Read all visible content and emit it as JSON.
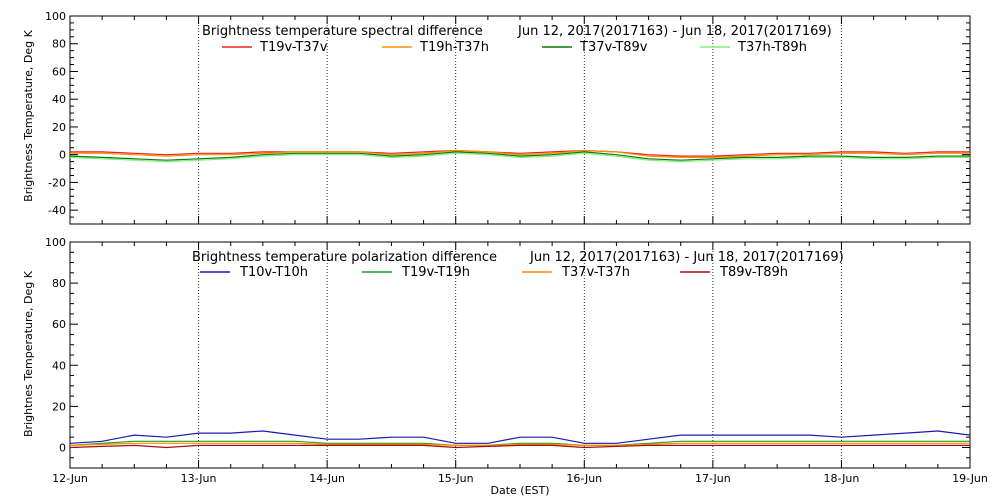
{
  "chart_data": [
    {
      "type": "line",
      "title": "Brightness temperature spectral difference",
      "date_range": "Jun 12, 2017(2017163) - Jun 18, 2017(2017169)",
      "xlabel": "",
      "ylabel": "Brightness Temperature, Deg K",
      "xlim": [
        0,
        7
      ],
      "ylim": [
        -50,
        100
      ],
      "yticks": [
        -40,
        -20,
        0,
        20,
        40,
        60,
        80,
        100
      ],
      "grid": "dotted vertical at each day",
      "legend_position": "top",
      "series": [
        {
          "name": "T19v-T37v",
          "color": "#e8231b",
          "x": [
            0,
            0.25,
            0.5,
            0.75,
            1,
            1.25,
            1.5,
            1.75,
            2,
            2.25,
            2.5,
            2.75,
            3,
            3.25,
            3.5,
            3.75,
            4,
            4.25,
            4.5,
            4.75,
            5,
            5.25,
            5.5,
            5.75,
            6,
            6.25,
            6.5,
            6.75,
            7
          ],
          "y": [
            2,
            2,
            1,
            0,
            1,
            1,
            2,
            2,
            2,
            2,
            1,
            2,
            3,
            2,
            1,
            2,
            3,
            2,
            0,
            -1,
            -1,
            0,
            1,
            1,
            2,
            2,
            1,
            2,
            2
          ]
        },
        {
          "name": "T19h-T37h",
          "color": "#ff8c00",
          "x": [
            0,
            0.25,
            0.5,
            0.75,
            1,
            1.25,
            1.5,
            1.75,
            2,
            2.25,
            2.5,
            2.75,
            3,
            3.25,
            3.5,
            3.75,
            4,
            4.25,
            4.5,
            4.75,
            5,
            5.25,
            5.5,
            5.75,
            6,
            6.25,
            6.5,
            6.75,
            7
          ],
          "y": [
            1,
            1,
            0,
            -1,
            0,
            0,
            1,
            2,
            2,
            2,
            0,
            1,
            3,
            2,
            0,
            1,
            3,
            2,
            -1,
            -2,
            -2,
            -1,
            0,
            0,
            1,
            1,
            0,
            1,
            1
          ]
        },
        {
          "name": "T37v-T89v",
          "color": "#0a7a0a",
          "x": [
            0,
            0.25,
            0.5,
            0.75,
            1,
            1.25,
            1.5,
            1.75,
            2,
            2.25,
            2.5,
            2.75,
            3,
            3.25,
            3.5,
            3.75,
            4,
            4.25,
            4.5,
            4.75,
            5,
            5.25,
            5.5,
            5.75,
            6,
            6.25,
            6.5,
            6.75,
            7
          ],
          "y": [
            -1,
            -2,
            -3,
            -4,
            -3,
            -2,
            0,
            1,
            1,
            1,
            -1,
            0,
            2,
            1,
            -1,
            0,
            2,
            0,
            -3,
            -4,
            -3,
            -2,
            -2,
            -1,
            -1,
            -2,
            -2,
            -1,
            -1
          ]
        },
        {
          "name": "T37h-T89h",
          "color": "#7cf07c",
          "x": [
            0,
            0.25,
            0.5,
            0.75,
            1,
            1.25,
            1.5,
            1.75,
            2,
            2.25,
            2.5,
            2.75,
            3,
            3.25,
            3.5,
            3.75,
            4,
            4.25,
            4.5,
            4.75,
            5,
            5.25,
            5.5,
            5.75,
            6,
            6.25,
            6.5,
            6.75,
            7
          ],
          "y": [
            -2,
            -3,
            -4,
            -5,
            -4,
            -3,
            -1,
            0,
            0,
            0,
            -2,
            -1,
            1,
            0,
            -2,
            -1,
            1,
            -1,
            -4,
            -5,
            -4,
            -3,
            -3,
            -2,
            -2,
            -3,
            -3,
            -2,
            -2
          ]
        }
      ]
    },
    {
      "type": "line",
      "title": "Brightness temperature polarization difference",
      "date_range": "Jun 12, 2017(2017163) - Jun 18, 2017(2017169)",
      "xlabel": "Date (EST)",
      "ylabel": "Brightnes Temperature, Deg K",
      "xlim": [
        0,
        7
      ],
      "ylim": [
        -10,
        100
      ],
      "yticks": [
        0,
        20,
        40,
        60,
        80,
        100
      ],
      "grid": "dotted vertical at each day",
      "legend_position": "top",
      "xtick_labels": [
        "12-Jun",
        "13-Jun",
        "14-Jun",
        "15-Jun",
        "16-Jun",
        "17-Jun",
        "18-Jun",
        "19-Jun"
      ],
      "series": [
        {
          "name": "T10v-T10h",
          "color": "#1a1ab0",
          "x": [
            0,
            0.25,
            0.5,
            0.75,
            1,
            1.25,
            1.5,
            1.75,
            2,
            2.25,
            2.5,
            2.75,
            3,
            3.25,
            3.5,
            3.75,
            4,
            4.25,
            4.5,
            4.75,
            5,
            5.25,
            5.5,
            5.75,
            6,
            6.25,
            6.5,
            6.75,
            7
          ],
          "y": [
            2,
            3,
            6,
            5,
            7,
            7,
            8,
            6,
            4,
            4,
            5,
            5,
            2,
            2,
            5,
            5,
            2,
            2,
            4,
            6,
            6,
            6,
            6,
            6,
            5,
            6,
            7,
            8,
            6
          ]
        },
        {
          "name": "T19v-T19h",
          "color": "#1ea01e",
          "x": [
            0,
            0.25,
            0.5,
            0.75,
            1,
            1.25,
            1.5,
            1.75,
            2,
            2.25,
            2.5,
            2.75,
            3,
            3.25,
            3.5,
            3.75,
            4,
            4.25,
            4.5,
            4.75,
            5,
            5.25,
            5.5,
            5.75,
            6,
            6.25,
            6.5,
            6.75,
            7
          ],
          "y": [
            1,
            2,
            3,
            3,
            3,
            3,
            3,
            3,
            2,
            2,
            2,
            2,
            1,
            1,
            2,
            2,
            1,
            1,
            2,
            3,
            3,
            3,
            3,
            3,
            3,
            3,
            3,
            3,
            3
          ]
        },
        {
          "name": "T37v-T37h",
          "color": "#ff8c00",
          "x": [
            0,
            0.25,
            0.5,
            0.75,
            1,
            1.25,
            1.5,
            1.75,
            2,
            2.25,
            2.5,
            2.75,
            3,
            3.25,
            3.5,
            3.75,
            4,
            4.25,
            4.5,
            4.75,
            5,
            5.25,
            5.5,
            5.75,
            6,
            6.25,
            6.5,
            6.75,
            7
          ],
          "y": [
            1,
            1.5,
            2,
            2,
            2,
            2,
            2,
            2,
            1.5,
            1.5,
            1.5,
            1.5,
            1,
            1,
            1.5,
            1.5,
            1,
            1,
            1.5,
            2,
            2,
            2,
            2,
            2,
            2,
            2,
            2,
            2,
            2
          ]
        },
        {
          "name": "T89v-T89h",
          "color": "#a01010",
          "x": [
            0,
            0.25,
            0.5,
            0.75,
            1,
            1.25,
            1.5,
            1.75,
            2,
            2.25,
            2.5,
            2.75,
            3,
            3.25,
            3.5,
            3.75,
            4,
            4.25,
            4.5,
            4.75,
            5,
            5.25,
            5.5,
            5.75,
            6,
            6.25,
            6.5,
            6.75,
            7
          ],
          "y": [
            0,
            0.5,
            1,
            0,
            1,
            1,
            1,
            1,
            1,
            1,
            1,
            1,
            0,
            0.5,
            1,
            1,
            0,
            0.5,
            1,
            1,
            1,
            1,
            1,
            1,
            1,
            1,
            1,
            1,
            1
          ]
        }
      ]
    }
  ]
}
